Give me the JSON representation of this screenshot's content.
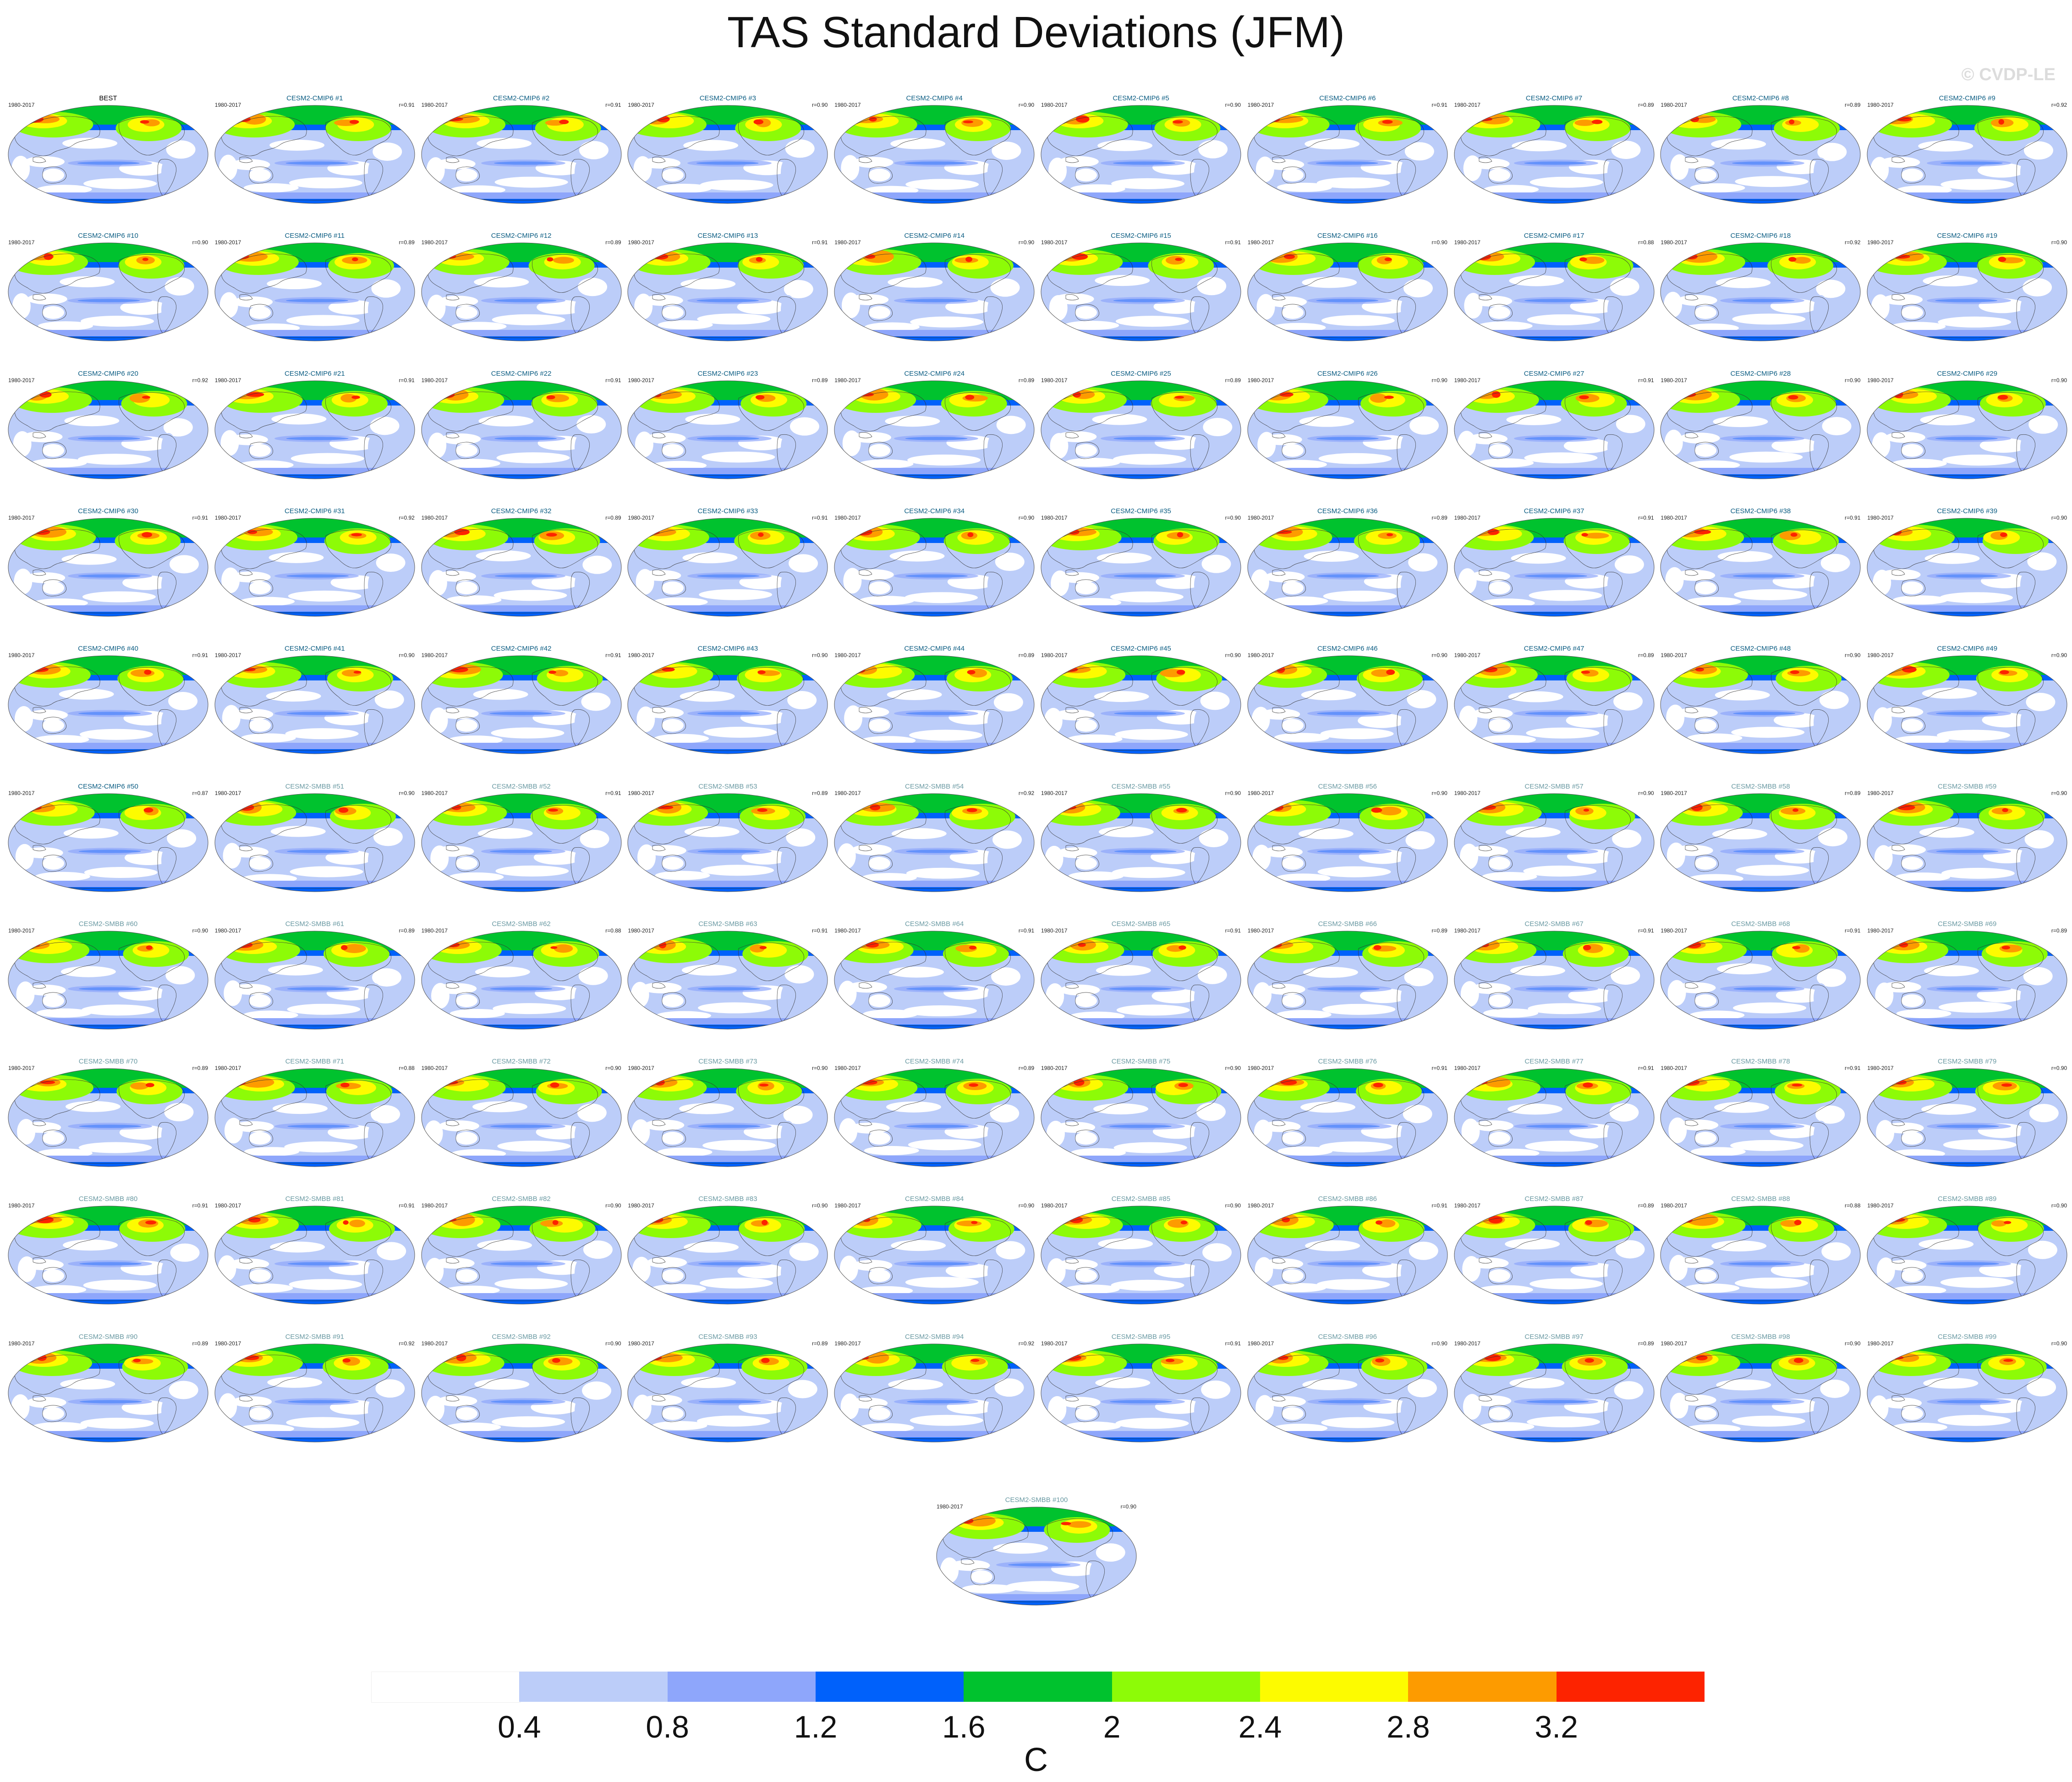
{
  "title": "TAS Standard Deviations (JFM)",
  "watermark": "© CVDP-LE",
  "period": "1980-2017",
  "panels": [
    {
      "label": "BEST",
      "corr": "",
      "group": "obs"
    },
    {
      "label": "CESM2-CMIP6 #1",
      "corr": "r=0.91",
      "group": "cmip6"
    },
    {
      "label": "CESM2-CMIP6 #2",
      "corr": "r=0.91",
      "group": "cmip6"
    },
    {
      "label": "CESM2-CMIP6 #3",
      "corr": "r=0.90",
      "group": "cmip6"
    },
    {
      "label": "CESM2-CMIP6 #4",
      "corr": "r=0.90",
      "group": "cmip6"
    },
    {
      "label": "CESM2-CMIP6 #5",
      "corr": "r=0.90",
      "group": "cmip6"
    },
    {
      "label": "CESM2-CMIP6 #6",
      "corr": "r=0.91",
      "group": "cmip6"
    },
    {
      "label": "CESM2-CMIP6 #7",
      "corr": "r=0.89",
      "group": "cmip6"
    },
    {
      "label": "CESM2-CMIP6 #8",
      "corr": "r=0.89",
      "group": "cmip6"
    },
    {
      "label": "CESM2-CMIP6 #9",
      "corr": "r=0.92",
      "group": "cmip6"
    },
    {
      "label": "CESM2-CMIP6 #10",
      "corr": "r=0.90",
      "group": "cmip6"
    },
    {
      "label": "CESM2-CMIP6 #11",
      "corr": "r=0.89",
      "group": "cmip6"
    },
    {
      "label": "CESM2-CMIP6 #12",
      "corr": "r=0.89",
      "group": "cmip6"
    },
    {
      "label": "CESM2-CMIP6 #13",
      "corr": "r=0.91",
      "group": "cmip6"
    },
    {
      "label": "CESM2-CMIP6 #14",
      "corr": "r=0.90",
      "group": "cmip6"
    },
    {
      "label": "CESM2-CMIP6 #15",
      "corr": "r=0.91",
      "group": "cmip6"
    },
    {
      "label": "CESM2-CMIP6 #16",
      "corr": "r=0.90",
      "group": "cmip6"
    },
    {
      "label": "CESM2-CMIP6 #17",
      "corr": "r=0.88",
      "group": "cmip6"
    },
    {
      "label": "CESM2-CMIP6 #18",
      "corr": "r=0.92",
      "group": "cmip6"
    },
    {
      "label": "CESM2-CMIP6 #19",
      "corr": "r=0.90",
      "group": "cmip6"
    },
    {
      "label": "CESM2-CMIP6 #20",
      "corr": "r=0.92",
      "group": "cmip6"
    },
    {
      "label": "CESM2-CMIP6 #21",
      "corr": "r=0.91",
      "group": "cmip6"
    },
    {
      "label": "CESM2-CMIP6 #22",
      "corr": "r=0.91",
      "group": "cmip6"
    },
    {
      "label": "CESM2-CMIP6 #23",
      "corr": "r=0.89",
      "group": "cmip6"
    },
    {
      "label": "CESM2-CMIP6 #24",
      "corr": "r=0.89",
      "group": "cmip6"
    },
    {
      "label": "CESM2-CMIP6 #25",
      "corr": "r=0.89",
      "group": "cmip6"
    },
    {
      "label": "CESM2-CMIP6 #26",
      "corr": "r=0.90",
      "group": "cmip6"
    },
    {
      "label": "CESM2-CMIP6 #27",
      "corr": "r=0.91",
      "group": "cmip6"
    },
    {
      "label": "CESM2-CMIP6 #28",
      "corr": "r=0.90",
      "group": "cmip6"
    },
    {
      "label": "CESM2-CMIP6 #29",
      "corr": "r=0.90",
      "group": "cmip6"
    },
    {
      "label": "CESM2-CMIP6 #30",
      "corr": "r=0.91",
      "group": "cmip6"
    },
    {
      "label": "CESM2-CMIP6 #31",
      "corr": "r=0.92",
      "group": "cmip6"
    },
    {
      "label": "CESM2-CMIP6 #32",
      "corr": "r=0.89",
      "group": "cmip6"
    },
    {
      "label": "CESM2-CMIP6 #33",
      "corr": "r=0.91",
      "group": "cmip6"
    },
    {
      "label": "CESM2-CMIP6 #34",
      "corr": "r=0.90",
      "group": "cmip6"
    },
    {
      "label": "CESM2-CMIP6 #35",
      "corr": "r=0.90",
      "group": "cmip6"
    },
    {
      "label": "CESM2-CMIP6 #36",
      "corr": "r=0.89",
      "group": "cmip6"
    },
    {
      "label": "CESM2-CMIP6 #37",
      "corr": "r=0.91",
      "group": "cmip6"
    },
    {
      "label": "CESM2-CMIP6 #38",
      "corr": "r=0.91",
      "group": "cmip6"
    },
    {
      "label": "CESM2-CMIP6 #39",
      "corr": "r=0.90",
      "group": "cmip6"
    },
    {
      "label": "CESM2-CMIP6 #40",
      "corr": "r=0.91",
      "group": "cmip6"
    },
    {
      "label": "CESM2-CMIP6 #41",
      "corr": "r=0.90",
      "group": "cmip6"
    },
    {
      "label": "CESM2-CMIP6 #42",
      "corr": "r=0.91",
      "group": "cmip6"
    },
    {
      "label": "CESM2-CMIP6 #43",
      "corr": "r=0.90",
      "group": "cmip6"
    },
    {
      "label": "CESM2-CMIP6 #44",
      "corr": "r=0.89",
      "group": "cmip6"
    },
    {
      "label": "CESM2-CMIP6 #45",
      "corr": "r=0.90",
      "group": "cmip6"
    },
    {
      "label": "CESM2-CMIP6 #46",
      "corr": "r=0.90",
      "group": "cmip6"
    },
    {
      "label": "CESM2-CMIP6 #47",
      "corr": "r=0.89",
      "group": "cmip6"
    },
    {
      "label": "CESM2-CMIP6 #48",
      "corr": "r=0.90",
      "group": "cmip6"
    },
    {
      "label": "CESM2-CMIP6 #49",
      "corr": "r=0.90",
      "group": "cmip6"
    },
    {
      "label": "CESM2-CMIP6 #50",
      "corr": "r=0.87",
      "group": "cmip6"
    },
    {
      "label": "CESM2-SMBB #51",
      "corr": "r=0.90",
      "group": "smbb"
    },
    {
      "label": "CESM2-SMBB #52",
      "corr": "r=0.91",
      "group": "smbb"
    },
    {
      "label": "CESM2-SMBB #53",
      "corr": "r=0.89",
      "group": "smbb"
    },
    {
      "label": "CESM2-SMBB #54",
      "corr": "r=0.92",
      "group": "smbb"
    },
    {
      "label": "CESM2-SMBB #55",
      "corr": "r=0.90",
      "group": "smbb"
    },
    {
      "label": "CESM2-SMBB #56",
      "corr": "r=0.90",
      "group": "smbb"
    },
    {
      "label": "CESM2-SMBB #57",
      "corr": "r=0.90",
      "group": "smbb"
    },
    {
      "label": "CESM2-SMBB #58",
      "corr": "r=0.89",
      "group": "smbb"
    },
    {
      "label": "CESM2-SMBB #59",
      "corr": "r=0.90",
      "group": "smbb"
    },
    {
      "label": "CESM2-SMBB #60",
      "corr": "r=0.90",
      "group": "smbb"
    },
    {
      "label": "CESM2-SMBB #61",
      "corr": "r=0.89",
      "group": "smbb"
    },
    {
      "label": "CESM2-SMBB #62",
      "corr": "r=0.88",
      "group": "smbb"
    },
    {
      "label": "CESM2-SMBB #63",
      "corr": "r=0.91",
      "group": "smbb"
    },
    {
      "label": "CESM2-SMBB #64",
      "corr": "r=0.91",
      "group": "smbb"
    },
    {
      "label": "CESM2-SMBB #65",
      "corr": "r=0.91",
      "group": "smbb"
    },
    {
      "label": "CESM2-SMBB #66",
      "corr": "r=0.89",
      "group": "smbb"
    },
    {
      "label": "CESM2-SMBB #67",
      "corr": "r=0.91",
      "group": "smbb"
    },
    {
      "label": "CESM2-SMBB #68",
      "corr": "r=0.91",
      "group": "smbb"
    },
    {
      "label": "CESM2-SMBB #69",
      "corr": "r=0.89",
      "group": "smbb"
    },
    {
      "label": "CESM2-SMBB #70",
      "corr": "r=0.89",
      "group": "smbb"
    },
    {
      "label": "CESM2-SMBB #71",
      "corr": "r=0.88",
      "group": "smbb"
    },
    {
      "label": "CESM2-SMBB #72",
      "corr": "r=0.90",
      "group": "smbb"
    },
    {
      "label": "CESM2-SMBB #73",
      "corr": "r=0.90",
      "group": "smbb"
    },
    {
      "label": "CESM2-SMBB #74",
      "corr": "r=0.89",
      "group": "smbb"
    },
    {
      "label": "CESM2-SMBB #75",
      "corr": "r=0.90",
      "group": "smbb"
    },
    {
      "label": "CESM2-SMBB #76",
      "corr": "r=0.91",
      "group": "smbb"
    },
    {
      "label": "CESM2-SMBB #77",
      "corr": "r=0.91",
      "group": "smbb"
    },
    {
      "label": "CESM2-SMBB #78",
      "corr": "r=0.91",
      "group": "smbb"
    },
    {
      "label": "CESM2-SMBB #79",
      "corr": "r=0.90",
      "group": "smbb"
    },
    {
      "label": "CESM2-SMBB #80",
      "corr": "r=0.91",
      "group": "smbb"
    },
    {
      "label": "CESM2-SMBB #81",
      "corr": "r=0.91",
      "group": "smbb"
    },
    {
      "label": "CESM2-SMBB #82",
      "corr": "r=0.90",
      "group": "smbb"
    },
    {
      "label": "CESM2-SMBB #83",
      "corr": "r=0.90",
      "group": "smbb"
    },
    {
      "label": "CESM2-SMBB #84",
      "corr": "r=0.90",
      "group": "smbb"
    },
    {
      "label": "CESM2-SMBB #85",
      "corr": "r=0.90",
      "group": "smbb"
    },
    {
      "label": "CESM2-SMBB #86",
      "corr": "r=0.91",
      "group": "smbb"
    },
    {
      "label": "CESM2-SMBB #87",
      "corr": "r=0.89",
      "group": "smbb"
    },
    {
      "label": "CESM2-SMBB #88",
      "corr": "r=0.88",
      "group": "smbb"
    },
    {
      "label": "CESM2-SMBB #89",
      "corr": "r=0.90",
      "group": "smbb"
    },
    {
      "label": "CESM2-SMBB #90",
      "corr": "r=0.89",
      "group": "smbb"
    },
    {
      "label": "CESM2-SMBB #91",
      "corr": "r=0.92",
      "group": "smbb"
    },
    {
      "label": "CESM2-SMBB #92",
      "corr": "r=0.90",
      "group": "smbb"
    },
    {
      "label": "CESM2-SMBB #93",
      "corr": "r=0.89",
      "group": "smbb"
    },
    {
      "label": "CESM2-SMBB #94",
      "corr": "r=0.92",
      "group": "smbb"
    },
    {
      "label": "CESM2-SMBB #95",
      "corr": "r=0.91",
      "group": "smbb"
    },
    {
      "label": "CESM2-SMBB #96",
      "corr": "r=0.90",
      "group": "smbb"
    },
    {
      "label": "CESM2-SMBB #97",
      "corr": "r=0.89",
      "group": "smbb"
    },
    {
      "label": "CESM2-SMBB #98",
      "corr": "r=0.90",
      "group": "smbb"
    },
    {
      "label": "CESM2-SMBB #99",
      "corr": "r=0.90",
      "group": "smbb"
    },
    {
      "label": "CESM2-SMBB #100",
      "corr": "r=0.90",
      "group": "smbb"
    }
  ],
  "colorbar": {
    "unit": "C",
    "ticks": [
      "0.4",
      "0.8",
      "1.2",
      "1.6",
      "2",
      "2.4",
      "2.8",
      "3.2"
    ],
    "colors": [
      "#ffffff",
      "#bccdf9",
      "#8ea6fb",
      "#0061fb",
      "#00c22e",
      "#8dfb07",
      "#fdfb00",
      "#fd9b00",
      "#fd2300"
    ]
  },
  "map_colors": {
    "ocean_low": "#ffffff",
    "ocean_mid": "#bccdf9",
    "equatorial": "#8ea6fb",
    "coast": "#333333"
  }
}
